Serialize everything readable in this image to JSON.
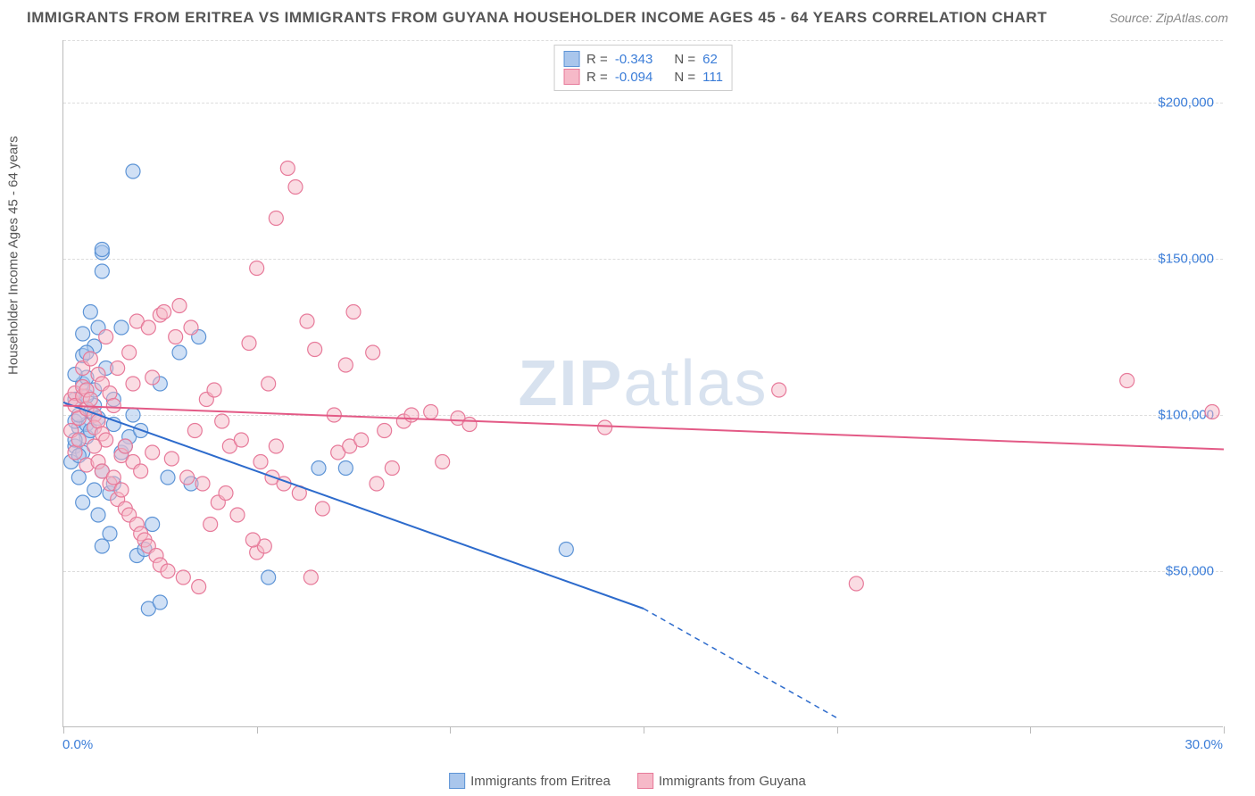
{
  "title": "IMMIGRANTS FROM ERITREA VS IMMIGRANTS FROM GUYANA HOUSEHOLDER INCOME AGES 45 - 64 YEARS CORRELATION CHART",
  "source": "Source: ZipAtlas.com",
  "watermark_bold": "ZIP",
  "watermark_light": "atlas",
  "chart": {
    "type": "scatter",
    "ylabel": "Householder Income Ages 45 - 64 years",
    "xlim": [
      0,
      30
    ],
    "ylim": [
      0,
      220000
    ],
    "x_ticks": [
      0,
      5,
      10,
      15,
      20,
      25,
      30
    ],
    "x_tick_labels_shown": {
      "0": "0.0%",
      "30": "30.0%"
    },
    "y_ticks": [
      50000,
      100000,
      150000,
      200000
    ],
    "y_tick_labels": [
      "$50,000",
      "$100,000",
      "$150,000",
      "$200,000"
    ],
    "background_color": "#ffffff",
    "grid_color": "#dddddd",
    "axis_color": "#bbbbbb",
    "tick_label_color": "#3b7dd8",
    "series": [
      {
        "name": "Immigrants from Eritrea",
        "r": -0.343,
        "n": 62,
        "marker_fill": "#a9c6ec",
        "marker_stroke": "#5d94d6",
        "marker_fill_opacity": 0.55,
        "marker_radius": 8,
        "line_color": "#2d6bcc",
        "line_width": 2,
        "trend": {
          "x1": 0,
          "y1": 104000,
          "x2": 15,
          "y2": 38000,
          "x2_dash": 20,
          "y2_dash": 3000
        },
        "points": [
          [
            0.3,
            105000
          ],
          [
            0.4,
            96000
          ],
          [
            0.3,
            90000
          ],
          [
            0.5,
            110000
          ],
          [
            0.6,
            112000
          ],
          [
            0.3,
            113000
          ],
          [
            0.8,
            122000
          ],
          [
            0.9,
            128000
          ],
          [
            1.0,
            152000
          ],
          [
            1.0,
            153000
          ],
          [
            1.8,
            178000
          ],
          [
            0.7,
            133000
          ],
          [
            0.4,
            80000
          ],
          [
            0.5,
            88000
          ],
          [
            0.6,
            93000
          ],
          [
            0.6,
            97000
          ],
          [
            0.7,
            101000
          ],
          [
            0.8,
            103000
          ],
          [
            1.2,
            75000
          ],
          [
            1.3,
            78000
          ],
          [
            1.5,
            128000
          ],
          [
            1.5,
            88000
          ],
          [
            1.7,
            93000
          ],
          [
            1.8,
            100000
          ],
          [
            2.0,
            95000
          ],
          [
            1.9,
            55000
          ],
          [
            2.1,
            57000
          ],
          [
            1.0,
            146000
          ],
          [
            1.0,
            58000
          ],
          [
            1.2,
            62000
          ],
          [
            1.3,
            105000
          ],
          [
            2.5,
            110000
          ],
          [
            2.7,
            80000
          ],
          [
            3.0,
            120000
          ],
          [
            3.5,
            125000
          ],
          [
            2.2,
            38000
          ],
          [
            2.5,
            40000
          ],
          [
            0.9,
            68000
          ],
          [
            0.5,
            72000
          ],
          [
            0.6,
            106000
          ],
          [
            0.8,
            108000
          ],
          [
            0.3,
            98000
          ],
          [
            0.4,
            100000
          ],
          [
            0.5,
            119000
          ],
          [
            3.3,
            78000
          ],
          [
            5.3,
            48000
          ],
          [
            6.6,
            83000
          ],
          [
            7.3,
            83000
          ],
          [
            13.0,
            57000
          ],
          [
            0.2,
            85000
          ],
          [
            0.3,
            92000
          ],
          [
            0.4,
            87000
          ],
          [
            0.7,
            95000
          ],
          [
            0.9,
            99000
          ],
          [
            1.1,
            115000
          ],
          [
            1.3,
            97000
          ],
          [
            1.6,
            90000
          ],
          [
            0.8,
            76000
          ],
          [
            1.0,
            82000
          ],
          [
            2.3,
            65000
          ],
          [
            0.6,
            120000
          ],
          [
            0.5,
            126000
          ]
        ]
      },
      {
        "name": "Immigrants from Guyana",
        "r": -0.094,
        "n": 111,
        "marker_fill": "#f6b9c8",
        "marker_stroke": "#e77a9a",
        "marker_fill_opacity": 0.5,
        "marker_radius": 8,
        "line_color": "#e35a86",
        "line_width": 2,
        "trend": {
          "x1": 0,
          "y1": 103000,
          "x2": 30,
          "y2": 89000
        },
        "points": [
          [
            0.2,
            105000
          ],
          [
            0.3,
            107000
          ],
          [
            0.3,
            103000
          ],
          [
            0.4,
            99000
          ],
          [
            0.5,
            106000
          ],
          [
            0.5,
            109000
          ],
          [
            0.6,
            108000
          ],
          [
            0.6,
            102000
          ],
          [
            0.7,
            105000
          ],
          [
            0.8,
            100000
          ],
          [
            0.8,
            96000
          ],
          [
            0.9,
            98000
          ],
          [
            0.9,
            113000
          ],
          [
            1.0,
            110000
          ],
          [
            1.0,
            94000
          ],
          [
            1.1,
            92000
          ],
          [
            1.2,
            107000
          ],
          [
            1.3,
            103000
          ],
          [
            1.4,
            115000
          ],
          [
            1.5,
            87000
          ],
          [
            1.6,
            90000
          ],
          [
            1.7,
            120000
          ],
          [
            1.8,
            85000
          ],
          [
            1.9,
            130000
          ],
          [
            2.0,
            82000
          ],
          [
            2.2,
            128000
          ],
          [
            2.3,
            88000
          ],
          [
            2.5,
            132000
          ],
          [
            2.6,
            133000
          ],
          [
            2.8,
            86000
          ],
          [
            3.0,
            135000
          ],
          [
            3.2,
            80000
          ],
          [
            3.4,
            95000
          ],
          [
            3.6,
            78000
          ],
          [
            3.8,
            65000
          ],
          [
            4.0,
            72000
          ],
          [
            4.2,
            75000
          ],
          [
            4.5,
            68000
          ],
          [
            4.8,
            123000
          ],
          [
            5.0,
            147000
          ],
          [
            5.3,
            110000
          ],
          [
            5.5,
            163000
          ],
          [
            5.8,
            179000
          ],
          [
            6.0,
            173000
          ],
          [
            6.3,
            130000
          ],
          [
            6.5,
            121000
          ],
          [
            5.0,
            56000
          ],
          [
            5.2,
            58000
          ],
          [
            5.5,
            90000
          ],
          [
            7.0,
            100000
          ],
          [
            7.3,
            116000
          ],
          [
            7.5,
            133000
          ],
          [
            8.0,
            120000
          ],
          [
            8.3,
            95000
          ],
          [
            8.5,
            83000
          ],
          [
            8.8,
            98000
          ],
          [
            9.0,
            100000
          ],
          [
            9.5,
            101000
          ],
          [
            9.8,
            85000
          ],
          [
            10.2,
            99000
          ],
          [
            10.5,
            97000
          ],
          [
            14.0,
            96000
          ],
          [
            18.5,
            108000
          ],
          [
            20.5,
            46000
          ],
          [
            27.5,
            111000
          ],
          [
            29.7,
            101000
          ],
          [
            0.2,
            95000
          ],
          [
            0.3,
            88000
          ],
          [
            0.4,
            92000
          ],
          [
            0.5,
            115000
          ],
          [
            0.6,
            84000
          ],
          [
            0.7,
            118000
          ],
          [
            0.8,
            90000
          ],
          [
            0.9,
            85000
          ],
          [
            1.0,
            82000
          ],
          [
            1.1,
            125000
          ],
          [
            1.2,
            78000
          ],
          [
            1.3,
            80000
          ],
          [
            1.4,
            73000
          ],
          [
            1.5,
            76000
          ],
          [
            1.6,
            70000
          ],
          [
            1.7,
            68000
          ],
          [
            1.8,
            110000
          ],
          [
            1.9,
            65000
          ],
          [
            2.0,
            62000
          ],
          [
            2.1,
            60000
          ],
          [
            2.2,
            58000
          ],
          [
            2.3,
            112000
          ],
          [
            2.4,
            55000
          ],
          [
            2.5,
            52000
          ],
          [
            2.7,
            50000
          ],
          [
            2.9,
            125000
          ],
          [
            3.1,
            48000
          ],
          [
            3.3,
            128000
          ],
          [
            3.5,
            45000
          ],
          [
            3.7,
            105000
          ],
          [
            3.9,
            108000
          ],
          [
            4.1,
            98000
          ],
          [
            4.3,
            90000
          ],
          [
            4.6,
            92000
          ],
          [
            4.9,
            60000
          ],
          [
            5.1,
            85000
          ],
          [
            5.4,
            80000
          ],
          [
            5.7,
            78000
          ],
          [
            6.1,
            75000
          ],
          [
            6.4,
            48000
          ],
          [
            6.7,
            70000
          ],
          [
            7.1,
            88000
          ],
          [
            7.4,
            90000
          ],
          [
            7.7,
            92000
          ],
          [
            8.1,
            78000
          ]
        ]
      }
    ]
  },
  "legend_labels": {
    "r_label": "R =",
    "n_label": "N ="
  }
}
